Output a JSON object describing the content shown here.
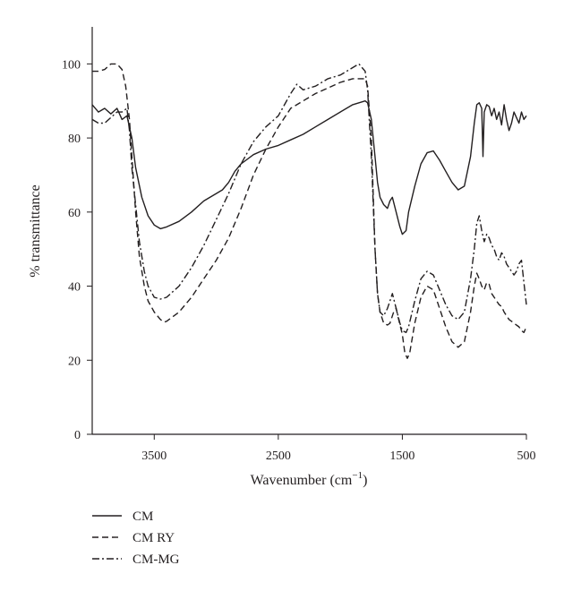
{
  "chart_data": {
    "type": "line",
    "xlabel": "Wavenumber (cm",
    "xlabel_sup": "−1",
    "xlabel_suffix": ")",
    "ylabel": "% transmittance",
    "xlim": [
      4000,
      500
    ],
    "ylim": [
      0,
      110
    ],
    "x_reversed": true,
    "x_ticks": [
      3500,
      2500,
      1500,
      500
    ],
    "y_ticks": [
      0,
      20,
      40,
      60,
      80,
      100
    ],
    "grid": false,
    "legend_position": "bottom-left",
    "series": [
      {
        "name": "CM",
        "dash": "solid",
        "points": [
          [
            4000,
            89
          ],
          [
            3950,
            87
          ],
          [
            3900,
            88
          ],
          [
            3850,
            86.5
          ],
          [
            3800,
            88
          ],
          [
            3760,
            85
          ],
          [
            3720,
            86
          ],
          [
            3680,
            80
          ],
          [
            3650,
            72
          ],
          [
            3600,
            64
          ],
          [
            3550,
            59
          ],
          [
            3500,
            56.5
          ],
          [
            3450,
            55.5
          ],
          [
            3400,
            56
          ],
          [
            3300,
            57.5
          ],
          [
            3200,
            60
          ],
          [
            3100,
            63
          ],
          [
            3000,
            65
          ],
          [
            2950,
            66
          ],
          [
            2900,
            68
          ],
          [
            2850,
            71
          ],
          [
            2800,
            73
          ],
          [
            2700,
            75.5
          ],
          [
            2600,
            77
          ],
          [
            2500,
            78
          ],
          [
            2400,
            79.5
          ],
          [
            2300,
            81
          ],
          [
            2200,
            83
          ],
          [
            2100,
            85
          ],
          [
            2000,
            87
          ],
          [
            1900,
            89
          ],
          [
            1800,
            90
          ],
          [
            1780,
            89.5
          ],
          [
            1750,
            85
          ],
          [
            1720,
            75
          ],
          [
            1700,
            68
          ],
          [
            1680,
            64
          ],
          [
            1650,
            62
          ],
          [
            1620,
            61
          ],
          [
            1600,
            63
          ],
          [
            1580,
            64
          ],
          [
            1550,
            60
          ],
          [
            1520,
            56
          ],
          [
            1500,
            54
          ],
          [
            1470,
            55
          ],
          [
            1450,
            60
          ],
          [
            1400,
            67
          ],
          [
            1350,
            73
          ],
          [
            1300,
            76
          ],
          [
            1250,
            76.5
          ],
          [
            1200,
            74
          ],
          [
            1150,
            71
          ],
          [
            1100,
            68
          ],
          [
            1050,
            66
          ],
          [
            1000,
            67
          ],
          [
            950,
            75
          ],
          [
            920,
            84
          ],
          [
            900,
            89
          ],
          [
            880,
            89.5
          ],
          [
            860,
            88
          ],
          [
            850,
            75
          ],
          [
            840,
            87
          ],
          [
            820,
            89
          ],
          [
            800,
            88.5
          ],
          [
            780,
            86
          ],
          [
            760,
            88
          ],
          [
            740,
            85
          ],
          [
            720,
            87
          ],
          [
            700,
            83.5
          ],
          [
            680,
            89
          ],
          [
            660,
            85
          ],
          [
            640,
            82
          ],
          [
            620,
            84
          ],
          [
            600,
            87
          ],
          [
            580,
            85.5
          ],
          [
            560,
            84
          ],
          [
            540,
            87
          ],
          [
            520,
            85
          ],
          [
            500,
            86
          ]
        ]
      },
      {
        "name": "CM RY",
        "dash": "dashed",
        "points": [
          [
            4000,
            98
          ],
          [
            3950,
            98
          ],
          [
            3900,
            98.5
          ],
          [
            3850,
            100
          ],
          [
            3800,
            100
          ],
          [
            3760,
            98.5
          ],
          [
            3730,
            94
          ],
          [
            3700,
            85
          ],
          [
            3680,
            75
          ],
          [
            3650,
            60
          ],
          [
            3620,
            48
          ],
          [
            3580,
            40
          ],
          [
            3550,
            36
          ],
          [
            3500,
            33
          ],
          [
            3450,
            31
          ],
          [
            3420,
            30.3
          ],
          [
            3400,
            30.5
          ],
          [
            3300,
            33
          ],
          [
            3200,
            37
          ],
          [
            3100,
            42
          ],
          [
            3000,
            47
          ],
          [
            2900,
            53
          ],
          [
            2800,
            61
          ],
          [
            2700,
            70
          ],
          [
            2600,
            77
          ],
          [
            2500,
            83
          ],
          [
            2400,
            88
          ],
          [
            2300,
            90
          ],
          [
            2200,
            92
          ],
          [
            2100,
            93.5
          ],
          [
            2000,
            95
          ],
          [
            1900,
            96
          ],
          [
            1800,
            96
          ],
          [
            1780,
            94
          ],
          [
            1750,
            80
          ],
          [
            1720,
            50
          ],
          [
            1700,
            38
          ],
          [
            1680,
            33
          ],
          [
            1650,
            30
          ],
          [
            1620,
            29.5
          ],
          [
            1600,
            30
          ],
          [
            1570,
            33
          ],
          [
            1550,
            34
          ],
          [
            1530,
            31
          ],
          [
            1500,
            27
          ],
          [
            1480,
            22
          ],
          [
            1460,
            20.5
          ],
          [
            1440,
            22
          ],
          [
            1400,
            30
          ],
          [
            1350,
            37
          ],
          [
            1300,
            40
          ],
          [
            1250,
            39
          ],
          [
            1200,
            34
          ],
          [
            1150,
            29
          ],
          [
            1100,
            25
          ],
          [
            1050,
            23.5
          ],
          [
            1000,
            25
          ],
          [
            950,
            33
          ],
          [
            920,
            40
          ],
          [
            900,
            43.5
          ],
          [
            880,
            42
          ],
          [
            860,
            40
          ],
          [
            840,
            39
          ],
          [
            820,
            41
          ],
          [
            800,
            40.5
          ],
          [
            780,
            38
          ],
          [
            760,
            37
          ],
          [
            740,
            36
          ],
          [
            720,
            35
          ],
          [
            700,
            34.5
          ],
          [
            680,
            33
          ],
          [
            660,
            32
          ],
          [
            640,
            31
          ],
          [
            620,
            30.5
          ],
          [
            600,
            30
          ],
          [
            580,
            29.5
          ],
          [
            560,
            29
          ],
          [
            540,
            28
          ],
          [
            520,
            27.5
          ],
          [
            500,
            29
          ]
        ]
      },
      {
        "name": "CM-MG",
        "dash": "dashdot",
        "points": [
          [
            4000,
            85
          ],
          [
            3950,
            84
          ],
          [
            3900,
            84
          ],
          [
            3850,
            85.5
          ],
          [
            3800,
            87
          ],
          [
            3760,
            87
          ],
          [
            3720,
            88
          ],
          [
            3700,
            82
          ],
          [
            3680,
            72
          ],
          [
            3650,
            62
          ],
          [
            3620,
            52
          ],
          [
            3580,
            44
          ],
          [
            3550,
            40
          ],
          [
            3500,
            37
          ],
          [
            3450,
            36.5
          ],
          [
            3400,
            37
          ],
          [
            3300,
            40
          ],
          [
            3200,
            45
          ],
          [
            3100,
            51
          ],
          [
            3000,
            58
          ],
          [
            2900,
            65
          ],
          [
            2800,
            73
          ],
          [
            2700,
            79
          ],
          [
            2600,
            83
          ],
          [
            2500,
            86
          ],
          [
            2400,
            92
          ],
          [
            2350,
            94.5
          ],
          [
            2300,
            93
          ],
          [
            2200,
            94
          ],
          [
            2100,
            96
          ],
          [
            2000,
            97
          ],
          [
            1900,
            99
          ],
          [
            1850,
            100
          ],
          [
            1800,
            98
          ],
          [
            1780,
            93
          ],
          [
            1750,
            75
          ],
          [
            1720,
            50
          ],
          [
            1700,
            38
          ],
          [
            1680,
            33
          ],
          [
            1650,
            32
          ],
          [
            1620,
            34
          ],
          [
            1600,
            36
          ],
          [
            1580,
            38
          ],
          [
            1550,
            34
          ],
          [
            1520,
            30
          ],
          [
            1500,
            28
          ],
          [
            1470,
            27.5
          ],
          [
            1450,
            29
          ],
          [
            1400,
            36
          ],
          [
            1350,
            42
          ],
          [
            1300,
            44
          ],
          [
            1250,
            43
          ],
          [
            1200,
            39
          ],
          [
            1150,
            35
          ],
          [
            1100,
            32
          ],
          [
            1050,
            31
          ],
          [
            1000,
            33
          ],
          [
            950,
            42
          ],
          [
            920,
            50
          ],
          [
            900,
            57
          ],
          [
            880,
            59
          ],
          [
            860,
            55
          ],
          [
            840,
            52
          ],
          [
            820,
            54
          ],
          [
            800,
            53
          ],
          [
            780,
            51
          ],
          [
            760,
            50
          ],
          [
            740,
            48
          ],
          [
            720,
            47
          ],
          [
            700,
            49
          ],
          [
            680,
            48
          ],
          [
            660,
            46
          ],
          [
            640,
            45
          ],
          [
            620,
            44
          ],
          [
            600,
            43
          ],
          [
            580,
            44
          ],
          [
            560,
            46
          ],
          [
            540,
            47
          ],
          [
            520,
            41
          ],
          [
            500,
            35
          ]
        ]
      }
    ]
  }
}
